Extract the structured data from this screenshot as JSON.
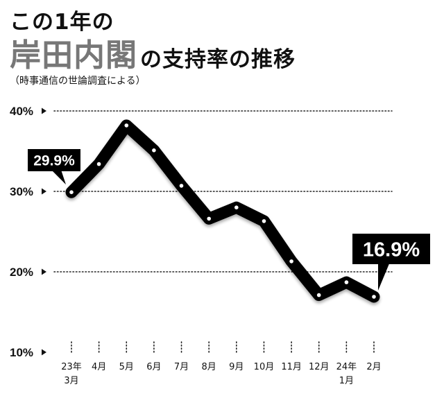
{
  "title": {
    "line1": "この1年の",
    "line2_main": "岸田内閣",
    "line2_sub": "の支持率の推移"
  },
  "source": "（時事通信の世論調査による）",
  "chart_data": {
    "type": "line",
    "title": "この1年の岸田内閣の支持率の推移",
    "subtitle": "（時事通信の世論調査による）",
    "xlabel": "",
    "ylabel": "",
    "unit": "%",
    "ylim": [
      10,
      40
    ],
    "yticks": [
      10,
      20,
      30,
      40
    ],
    "ytick_labels": [
      "10%",
      "20%",
      "30%",
      "40%"
    ],
    "grid": "horizontal dotted",
    "legend": "none",
    "categories": [
      {
        "line1": "23年",
        "line2": "3月"
      },
      {
        "line1": "4月",
        "line2": ""
      },
      {
        "line1": "5月",
        "line2": ""
      },
      {
        "line1": "6月",
        "line2": ""
      },
      {
        "line1": "7月",
        "line2": ""
      },
      {
        "line1": "8月",
        "line2": ""
      },
      {
        "line1": "9月",
        "line2": ""
      },
      {
        "line1": "10月",
        "line2": ""
      },
      {
        "line1": "11月",
        "line2": ""
      },
      {
        "line1": "12月",
        "line2": ""
      },
      {
        "line1": "24年",
        "line2": "1月"
      },
      {
        "line1": "2月",
        "line2": ""
      }
    ],
    "series": [
      {
        "name": "",
        "values": [
          29.9,
          33.4,
          38.2,
          35.1,
          30.7,
          26.6,
          28.0,
          26.3,
          21.3,
          17.1,
          18.7,
          16.9
        ],
        "color": "#000000"
      }
    ],
    "annotations": [
      {
        "index": 0,
        "text": "29.9%"
      },
      {
        "index": 11,
        "text": "16.9%"
      }
    ]
  }
}
